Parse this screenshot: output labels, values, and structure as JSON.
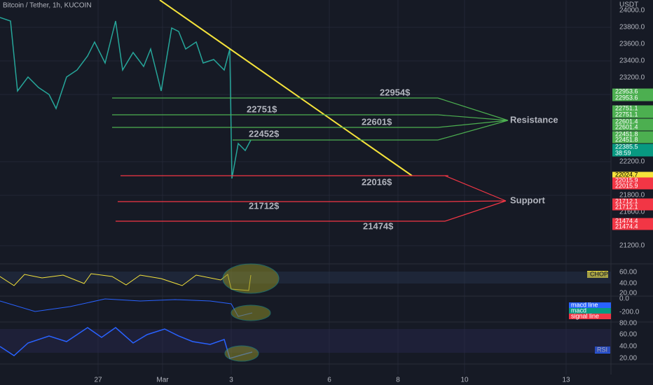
{
  "header": {
    "title": "Bitcoin / Tether, 1h, KUCOIN",
    "currency": "USDT"
  },
  "price_axis": [
    "24000.0",
    "23800.0",
    "23600.0",
    "23400.0",
    "23200.0",
    "22200.0",
    "21800.0",
    "21600.0",
    "21200.0"
  ],
  "levels": [
    "22954$",
    "22751$",
    "22601$",
    "22452$",
    "22016$",
    "21712$",
    "21474$"
  ],
  "zones": {
    "resistance": "Resistance",
    "support": "Support"
  },
  "price_tags": [
    "22953.6",
    "22953.6",
    "22751.1",
    "22751.1",
    "22601.4",
    "22601.4",
    "22451.8",
    "22451.8",
    "22385.5",
    "38:59",
    "22024.7",
    "22015.9",
    "22015.9",
    "21712.1",
    "21712.1",
    "21474.4",
    "21474.4"
  ],
  "chop": {
    "name": "CHOP",
    "axis": [
      "60.00",
      "40.00",
      "20.00"
    ]
  },
  "macd": {
    "axis": [
      "0.0",
      "-200.0"
    ],
    "tags": [
      "macd line",
      "macd",
      "signal line"
    ]
  },
  "rsi": {
    "name": "RSI",
    "axis": [
      "80.00",
      "60.00",
      "40.00",
      "20.00"
    ]
  },
  "time_axis": [
    "27",
    "Mar",
    "3",
    "6",
    "8",
    "10",
    "13"
  ]
}
